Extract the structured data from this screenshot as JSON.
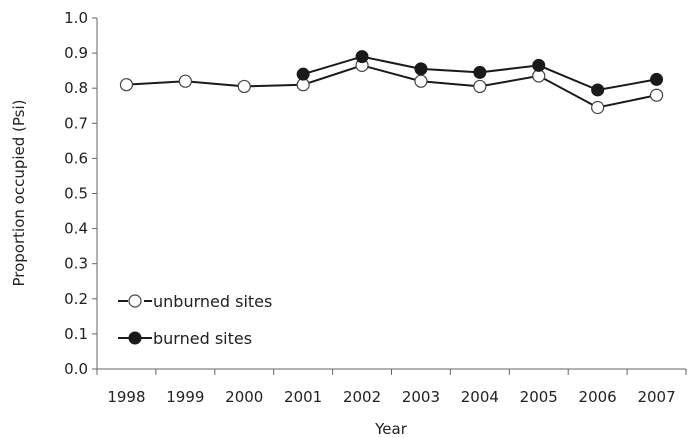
{
  "chart_data": {
    "type": "line",
    "title": "",
    "xlabel": "Year",
    "ylabel": "Proportion occupied (Psi)",
    "categories": [
      "1998",
      "1999",
      "2000",
      "2001",
      "2002",
      "2003",
      "2004",
      "2005",
      "2006",
      "2007"
    ],
    "y_ticks": [
      "0.0",
      "0.1",
      "0.2",
      "0.3",
      "0.4",
      "0.5",
      "0.6",
      "0.7",
      "0.8",
      "0.9",
      "1.0"
    ],
    "ylim": [
      0,
      1.0
    ],
    "grid": false,
    "legend_position": "bottom-left",
    "series": [
      {
        "name": "unburned sites",
        "marker": "open-circle",
        "color": "#1a1a1a",
        "values": [
          0.81,
          0.82,
          0.805,
          0.81,
          0.865,
          0.82,
          0.805,
          0.835,
          0.745,
          0.78
        ]
      },
      {
        "name": "burned sites",
        "marker": "filled-circle",
        "color": "#1a1a1a",
        "values": [
          null,
          null,
          null,
          0.84,
          0.89,
          0.855,
          0.845,
          0.865,
          0.795,
          0.825
        ]
      }
    ]
  }
}
